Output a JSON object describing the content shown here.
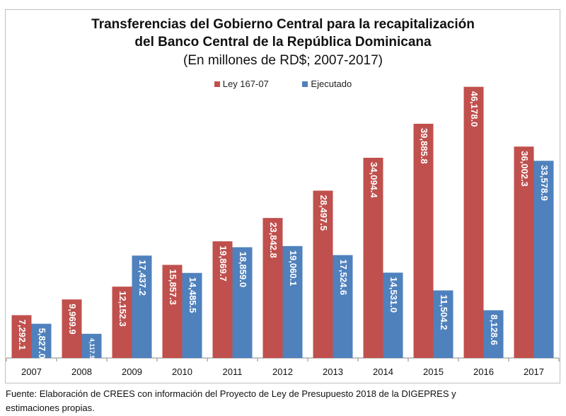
{
  "chart_data": {
    "type": "bar",
    "title": "Transferencias del Gobierno Central  para la recapitalización",
    "title_line2": "del Banco Central de la República Dominicana",
    "subtitle": "(En millones de RD$; 2007-2017)",
    "categories": [
      "2007",
      "2008",
      "2009",
      "2010",
      "2011",
      "2012",
      "2013",
      "2014",
      "2015",
      "2016",
      "2017"
    ],
    "series": [
      {
        "name": "Ley 167-07",
        "color": "#c0504d",
        "values": [
          7292.1,
          9969.9,
          12152.3,
          15857.3,
          19869.7,
          23842.8,
          28497.5,
          34094.4,
          39885.8,
          46178.0,
          36002.3
        ],
        "labels": [
          "7,292.1",
          "9,969.9",
          "12,152.3",
          "15,857.3",
          "19,869.7",
          "23,842.8",
          "28,497.5",
          "34,094.4",
          "39,885.8",
          "46,178.0",
          "36,002.3"
        ]
      },
      {
        "name": "Ejecutado",
        "color": "#4f81bd",
        "values": [
          5827.0,
          4117.9,
          17437.2,
          14485.5,
          18859.0,
          19060.1,
          17524.6,
          14531.0,
          11504.2,
          8128.6,
          33578.9
        ],
        "labels": [
          "5,827.0",
          "4,117.9",
          "17,437.2",
          "14,485.5",
          "18,859.0",
          "19,060.1",
          "17,524.6",
          "14,531.0",
          "11,504.2",
          "8,128.6",
          "33,578.9"
        ]
      }
    ],
    "ylim": [
      0,
      50000
    ],
    "legend_position": "top",
    "grid": false,
    "xlabel": "",
    "ylabel": ""
  },
  "source": "Fuente: Elaboración de CREES con información del Proyecto de Ley de Presupuesto 2018 de la DIGEPRES y",
  "source_line2": "estimaciones propias."
}
